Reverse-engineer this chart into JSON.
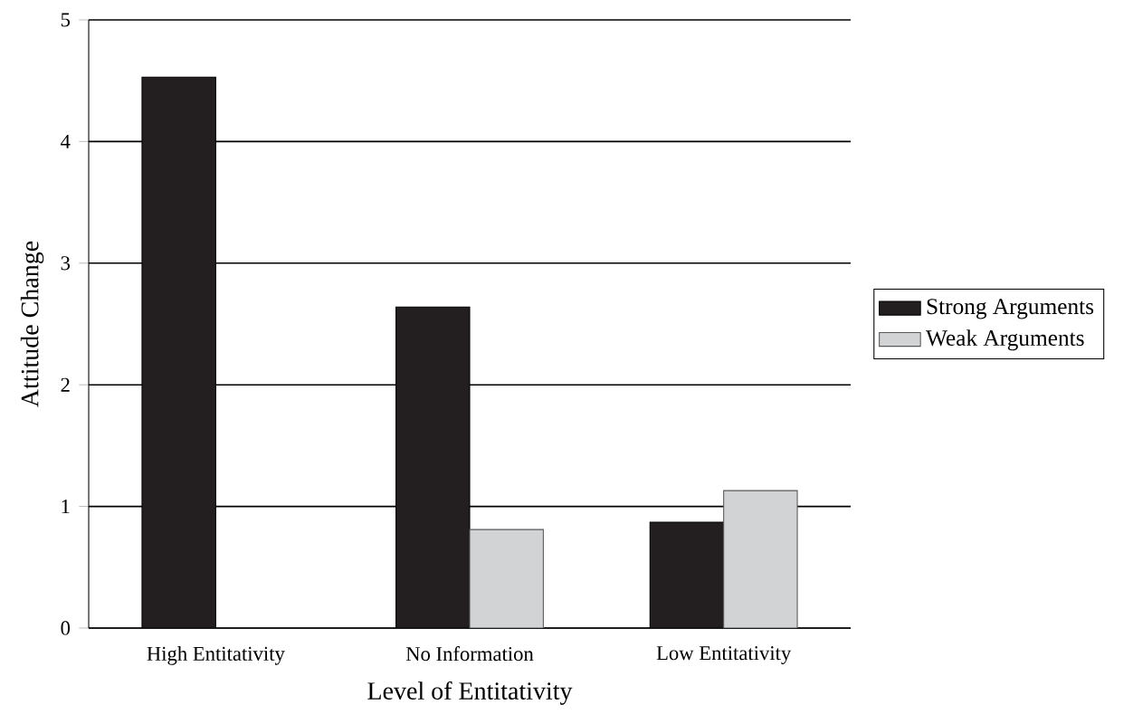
{
  "chart_data": {
    "type": "bar",
    "xlabel": "Level of Entitativity",
    "ylabel": "Attitude Change",
    "categories": [
      "High Entitativity",
      "No Information",
      "Low Entitativity"
    ],
    "series": [
      {
        "name": "Strong Arguments",
        "color": "#231f20",
        "values": [
          4.53,
          2.64,
          0.87
        ]
      },
      {
        "name": "Weak Arguments",
        "color": "#d1d3d4",
        "values": [
          null,
          0.81,
          1.13
        ]
      }
    ],
    "ylim": [
      0,
      5
    ],
    "yticks": [
      0,
      1,
      2,
      3,
      4,
      5
    ],
    "grid": "y",
    "legend": "right"
  }
}
